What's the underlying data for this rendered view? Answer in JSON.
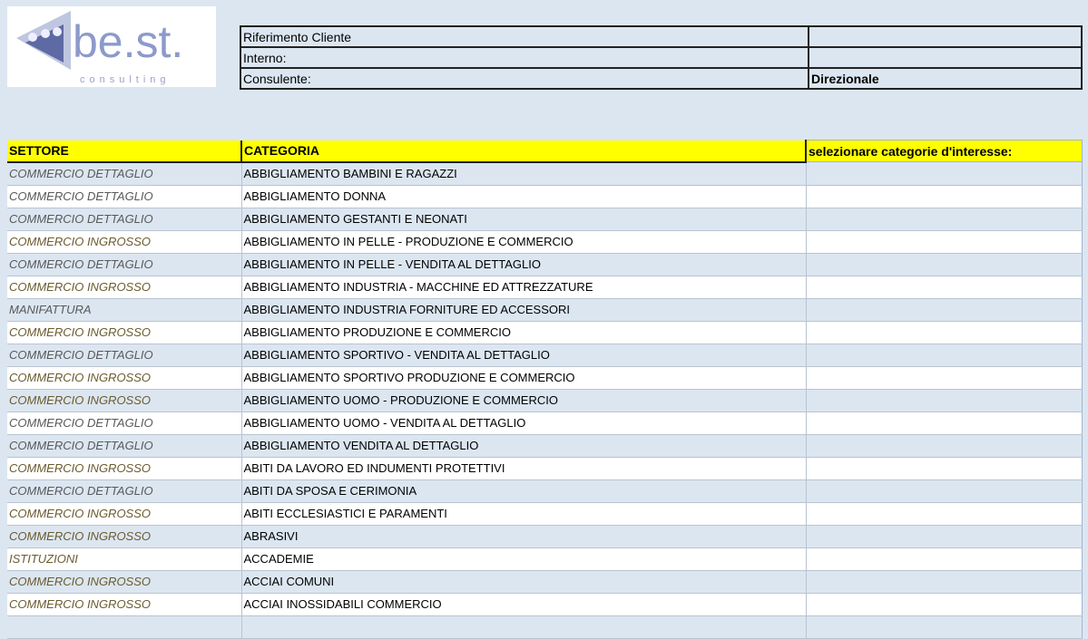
{
  "logo": {
    "text": "be.st.",
    "subtext": "consulting",
    "color": "#8c9acb"
  },
  "info": [
    {
      "label": "Riferimento Cliente",
      "value": ""
    },
    {
      "label": "Interno:",
      "value": ""
    },
    {
      "label": "Consulente:",
      "value": "Direzionale"
    }
  ],
  "table": {
    "headers": [
      "SETTORE",
      "CATEGORIA",
      "selezionare categorie d'interesse:"
    ],
    "header_color": "#ffff00",
    "rows": [
      {
        "settore": "COMMERCIO DETTAGLIO",
        "categoria": "ABBIGLIAMENTO BAMBINI E RAGAZZI",
        "sel": ""
      },
      {
        "settore": "COMMERCIO DETTAGLIO",
        "categoria": "ABBIGLIAMENTO DONNA",
        "sel": ""
      },
      {
        "settore": "COMMERCIO DETTAGLIO",
        "categoria": "ABBIGLIAMENTO GESTANTI E NEONATI",
        "sel": ""
      },
      {
        "settore": "COMMERCIO INGROSSO",
        "categoria": "ABBIGLIAMENTO IN PELLE - PRODUZIONE E COMMERCIO",
        "sel": ""
      },
      {
        "settore": "COMMERCIO DETTAGLIO",
        "categoria": "ABBIGLIAMENTO IN PELLE - VENDITA AL DETTAGLIO",
        "sel": ""
      },
      {
        "settore": "COMMERCIO INGROSSO",
        "categoria": "ABBIGLIAMENTO INDUSTRIA - MACCHINE ED ATTREZZATURE",
        "sel": ""
      },
      {
        "settore": "MANIFATTURA",
        "categoria": "ABBIGLIAMENTO INDUSTRIA FORNITURE ED ACCESSORI",
        "sel": ""
      },
      {
        "settore": "COMMERCIO INGROSSO",
        "categoria": "ABBIGLIAMENTO PRODUZIONE E COMMERCIO",
        "sel": ""
      },
      {
        "settore": "COMMERCIO DETTAGLIO",
        "categoria": "ABBIGLIAMENTO SPORTIVO - VENDITA AL DETTAGLIO",
        "sel": ""
      },
      {
        "settore": "COMMERCIO INGROSSO",
        "categoria": "ABBIGLIAMENTO SPORTIVO PRODUZIONE E COMMERCIO",
        "sel": ""
      },
      {
        "settore": "COMMERCIO INGROSSO",
        "categoria": "ABBIGLIAMENTO UOMO - PRODUZIONE E COMMERCIO",
        "sel": ""
      },
      {
        "settore": "COMMERCIO DETTAGLIO",
        "categoria": "ABBIGLIAMENTO UOMO - VENDITA AL DETTAGLIO",
        "sel": ""
      },
      {
        "settore": "COMMERCIO DETTAGLIO",
        "categoria": "ABBIGLIAMENTO VENDITA AL DETTAGLIO",
        "sel": ""
      },
      {
        "settore": "COMMERCIO INGROSSO",
        "categoria": "ABITI DA LAVORO ED INDUMENTI PROTETTIVI",
        "sel": ""
      },
      {
        "settore": "COMMERCIO DETTAGLIO",
        "categoria": "ABITI DA SPOSA E CERIMONIA",
        "sel": ""
      },
      {
        "settore": "COMMERCIO INGROSSO",
        "categoria": "ABITI ECCLESIASTICI E PARAMENTI",
        "sel": ""
      },
      {
        "settore": "COMMERCIO INGROSSO",
        "categoria": "ABRASIVI",
        "sel": ""
      },
      {
        "settore": "ISTITUZIONI",
        "categoria": "ACCADEMIE",
        "sel": ""
      },
      {
        "settore": "COMMERCIO INGROSSO",
        "categoria": "ACCIAI COMUNI",
        "sel": ""
      },
      {
        "settore": "COMMERCIO INGROSSO",
        "categoria": "ACCIAI INOSSIDABILI COMMERCIO",
        "sel": ""
      },
      {
        "settore": "",
        "categoria": "",
        "sel": ""
      }
    ]
  }
}
